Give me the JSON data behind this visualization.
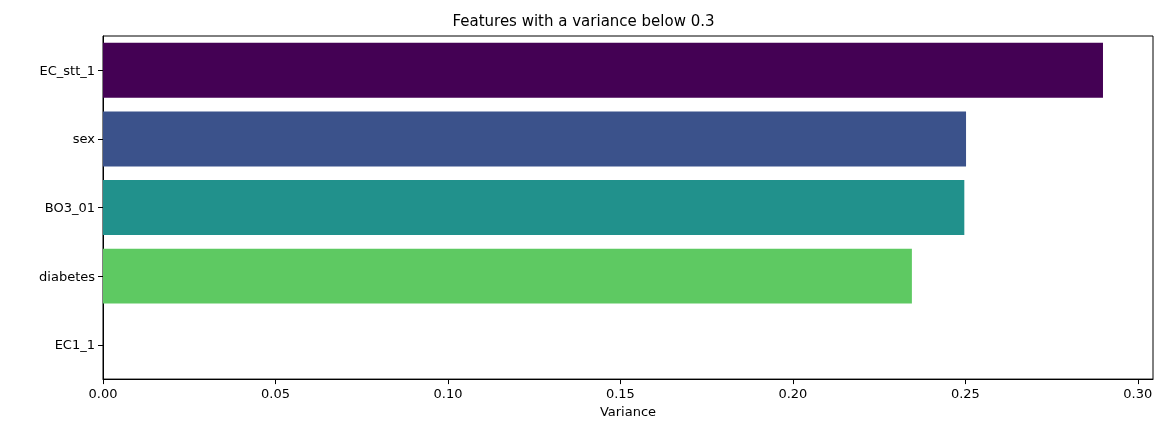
{
  "chart_data": {
    "type": "bar",
    "orientation": "horizontal",
    "title": "Features with a variance below 0.3",
    "xlabel": "Variance",
    "categories": [
      "EC_stt_1",
      "sex",
      "BO3_01",
      "diabetes",
      "EC1_1"
    ],
    "values": [
      0.2899,
      0.2502,
      0.2497,
      0.2345,
      0
    ],
    "colors": [
      "#440154",
      "#3b528b",
      "#21918c",
      "#5ec962",
      "#fde725"
    ],
    "xlim": [
      0,
      0.3044
    ],
    "xticks": [
      {
        "value": 0,
        "label": "0.00"
      },
      {
        "value": 0.05,
        "label": "0.05"
      },
      {
        "value": 0.1,
        "label": "0.10"
      },
      {
        "value": 0.15,
        "label": "0.15"
      },
      {
        "value": 0.2,
        "label": "0.20"
      },
      {
        "value": 0.25,
        "label": "0.25"
      },
      {
        "value": 0.3,
        "label": "0.30"
      }
    ]
  }
}
